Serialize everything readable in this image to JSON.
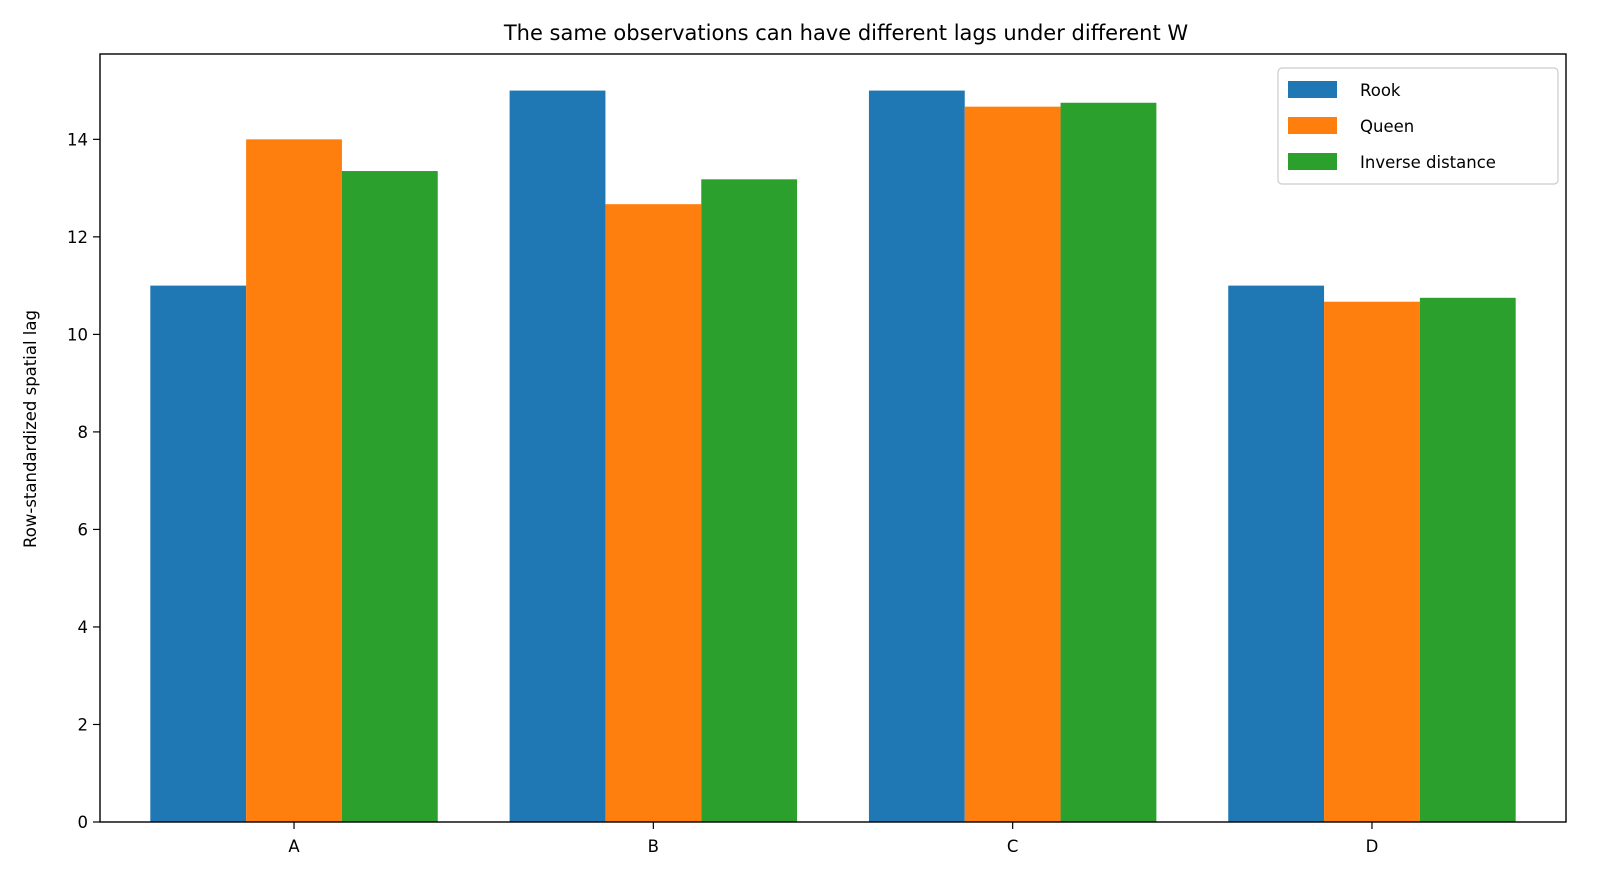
{
  "chart_data": {
    "type": "bar",
    "title": "The same observations can have different lags under different W",
    "xlabel": "",
    "ylabel": "Row-standardized spatial lag",
    "categories": [
      "A",
      "B",
      "C",
      "D"
    ],
    "series": [
      {
        "name": "Rook",
        "color": "#1f77b4",
        "values": [
          11.0,
          15.0,
          15.0,
          11.0
        ]
      },
      {
        "name": "Queen",
        "color": "#ff7f0e",
        "values": [
          14.0,
          12.67,
          14.67,
          10.67
        ]
      },
      {
        "name": "Inverse distance",
        "color": "#2ca02c",
        "values": [
          13.35,
          13.18,
          14.75,
          10.75
        ]
      }
    ],
    "ylim": [
      0,
      15.75
    ],
    "yticks": [
      0,
      2,
      4,
      6,
      8,
      10,
      12,
      14
    ],
    "grid": false,
    "legend_position": "top-right"
  }
}
